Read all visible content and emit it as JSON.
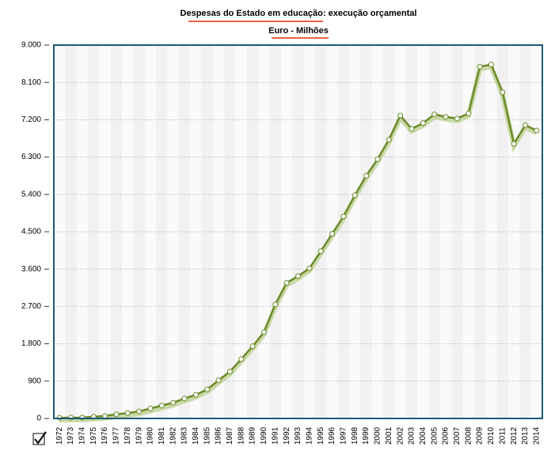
{
  "chart_data": {
    "type": "line",
    "title": "Despesas do Estado em educação: execução orçamental",
    "subtitle": "Euro - Milhões",
    "categories": [
      "1972",
      "1973",
      "1974",
      "1975",
      "1976",
      "1977",
      "1978",
      "1979",
      "1980",
      "1981",
      "1982",
      "1983",
      "1984",
      "1985",
      "1986",
      "1987",
      "1988",
      "1989",
      "1990",
      "1991",
      "1992",
      "1993",
      "1994",
      "1995",
      "1996",
      "1997",
      "1998",
      "1999",
      "2000",
      "2001",
      "2002",
      "2003",
      "2004",
      "2005",
      "2006",
      "2007",
      "2008",
      "2009",
      "2010",
      "2011",
      "2012",
      "2013",
      "2014"
    ],
    "series": [
      {
        "color": "#6b8a2a",
        "values": [
          15,
          18,
          22,
          40,
          60,
          100,
          130,
          170,
          240,
          310,
          380,
          480,
          570,
          700,
          920,
          1130,
          1430,
          1740,
          2080,
          2750,
          3270,
          3430,
          3620,
          4030,
          4450,
          4870,
          5380,
          5850,
          6250,
          6720,
          7300,
          6980,
          7120,
          7330,
          7270,
          7230,
          7350,
          8480,
          8530,
          7860,
          6620,
          7070,
          6940
        ]
      }
    ],
    "ylim": [
      0,
      9000
    ],
    "yticks": [
      0,
      {
        "value": 900,
        "label": "900"
      },
      {
        "value": 1800,
        "label": "1.800"
      },
      {
        "value": 2700,
        "label": "2.700"
      },
      {
        "value": 3600,
        "label": "3.600"
      },
      {
        "value": 4500,
        "label": "4.500"
      },
      {
        "value": 5400,
        "label": "5.400"
      },
      {
        "value": 6300,
        "label": "6.300"
      },
      {
        "value": 7200,
        "label": "7.200"
      },
      {
        "value": 8100,
        "label": "8.100"
      },
      {
        "value": 9000,
        "label": "9.000"
      }
    ],
    "grid": true
  }
}
